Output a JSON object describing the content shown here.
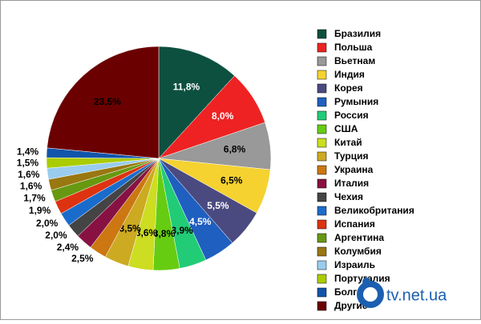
{
  "chart_data": {
    "type": "pie",
    "categories": [
      "Бразилия",
      "Польша",
      "Вьетнам",
      "Индия",
      "Корея",
      "Румыния",
      "Россия",
      "США",
      "Китай",
      "Турция",
      "Украина",
      "Италия",
      "Чехия",
      "Великобритания",
      "Испания",
      "Аргентина",
      "Колумбия",
      "Израиль",
      "Португалия",
      "Болгария",
      "Другие"
    ],
    "values": [
      11.8,
      8.0,
      6.8,
      6.5,
      5.5,
      4.5,
      3.9,
      3.8,
      3.6,
      3.5,
      2.5,
      2.4,
      2.0,
      2.0,
      1.9,
      1.7,
      1.6,
      1.6,
      1.5,
      1.4,
      23.5
    ],
    "value_labels": [
      "11,8%",
      "8,0%",
      "6,8%",
      "6,5%",
      "5,5%",
      "4,5%",
      "3,9%",
      "3,8%",
      "3,6%",
      "3,5%",
      "2,5%",
      "2,4%",
      "2,0%",
      "2,0%",
      "1,9%",
      "1,7%",
      "1,6%",
      "1,6%",
      "1,5%",
      "1,4%",
      "23,5%"
    ],
    "colors": [
      "#0d5040",
      "#ee2222",
      "#999999",
      "#f5d230",
      "#4a4a80",
      "#1f5fc0",
      "#22cc77",
      "#66cc11",
      "#ccdd22",
      "#ccaa22",
      "#cc7711",
      "#881144",
      "#444444",
      "#1a6ccc",
      "#dd3311",
      "#669911",
      "#997711",
      "#99ccee",
      "#aacc00",
      "#1155aa",
      "#6b0000"
    ],
    "legend": "right"
  },
  "watermark": "tv.net.ua"
}
